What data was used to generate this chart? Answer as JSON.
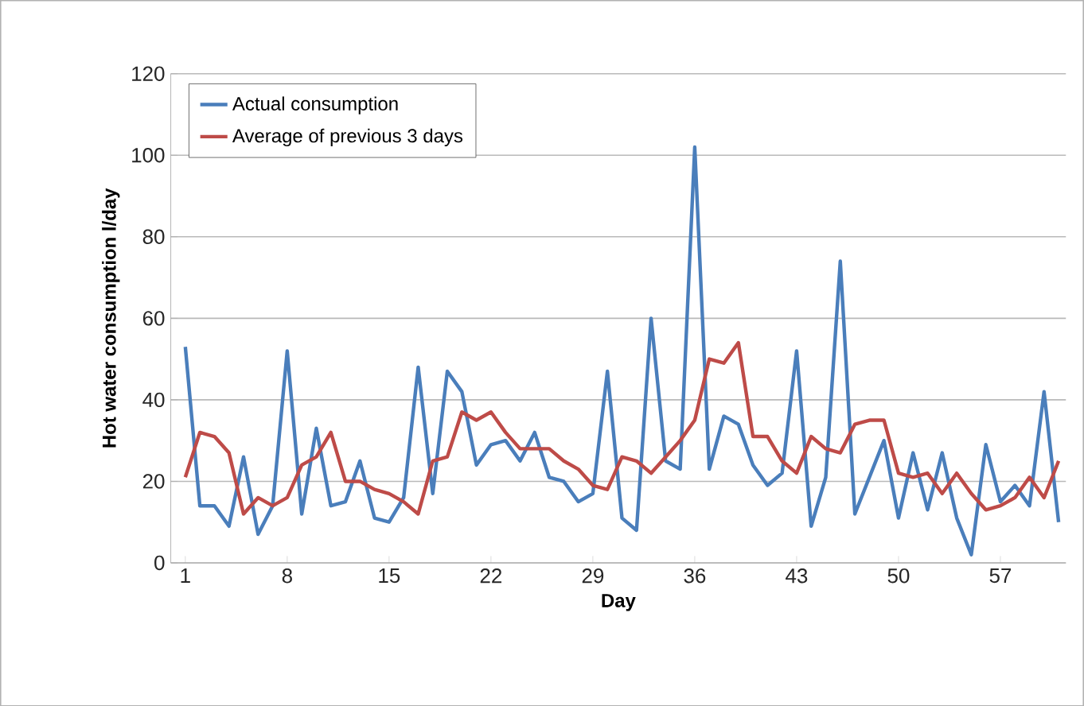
{
  "chart_data": {
    "type": "line",
    "xlabel": "Day",
    "ylabel": "Hot water consumption l/day",
    "x": [
      1,
      2,
      3,
      4,
      5,
      6,
      7,
      8,
      9,
      10,
      11,
      12,
      13,
      14,
      15,
      16,
      17,
      18,
      19,
      20,
      21,
      22,
      23,
      24,
      25,
      26,
      27,
      28,
      29,
      30,
      31,
      32,
      33,
      34,
      35,
      36,
      37,
      38,
      39,
      40,
      41,
      42,
      43,
      44,
      45,
      46,
      47,
      48,
      49,
      50,
      51,
      52,
      53,
      54,
      55,
      56,
      57,
      58,
      59,
      60,
      61
    ],
    "series": [
      {
        "name": "Actual consumption",
        "color": "#4a7ebb",
        "values": [
          53,
          14,
          14,
          9,
          26,
          7,
          14,
          52,
          12,
          33,
          14,
          15,
          25,
          11,
          10,
          16,
          48,
          17,
          47,
          42,
          24,
          29,
          30,
          25,
          32,
          21,
          20,
          15,
          17,
          47,
          11,
          8,
          60,
          25,
          23,
          102,
          23,
          36,
          34,
          24,
          19,
          22,
          52,
          9,
          21,
          74,
          12,
          21,
          30,
          11,
          27,
          13,
          27,
          11,
          2,
          29,
          15,
          19,
          14,
          42,
          10
        ]
      },
      {
        "name": "Average of previous 3 days",
        "color": "#be4b48",
        "values": [
          21,
          32,
          31,
          27,
          12,
          16,
          14,
          16,
          24,
          26,
          32,
          20,
          20,
          18,
          17,
          15,
          12,
          25,
          26,
          37,
          35,
          37,
          32,
          28,
          28,
          28,
          25,
          23,
          19,
          18,
          26,
          25,
          22,
          26,
          30,
          35,
          50,
          49,
          54,
          31,
          31,
          25,
          22,
          31,
          28,
          27,
          34,
          35,
          35,
          22,
          21,
          22,
          17,
          22,
          17,
          13,
          14,
          16,
          21,
          16,
          25
        ]
      }
    ],
    "xlim": [
      0,
      61.5
    ],
    "ylim": [
      0,
      120
    ],
    "xticks": [
      1,
      8,
      15,
      22,
      29,
      36,
      43,
      50,
      57
    ],
    "yticks": [
      0,
      20,
      40,
      60,
      80,
      100,
      120
    ],
    "grid": "y",
    "legend": "top left",
    "marker": "none",
    "line_style": "solid"
  }
}
